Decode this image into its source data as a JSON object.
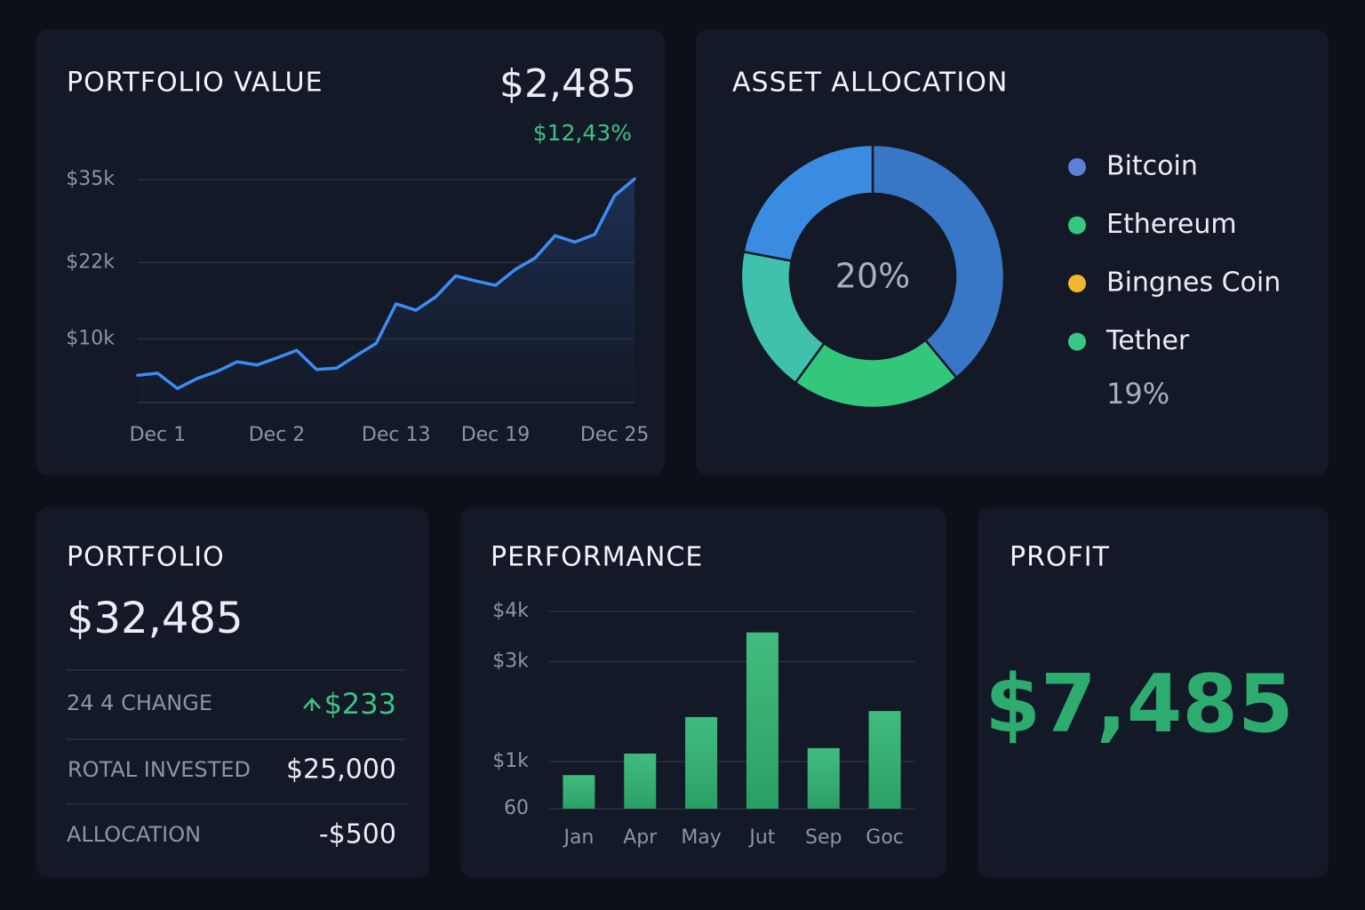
{
  "chart_data": [
    {
      "type": "line",
      "title": "PORTFOLIO VALUE",
      "headline": "$2,485",
      "change": "$12,43%",
      "categories": [
        null,
        "Dec 1",
        null,
        null,
        null,
        null,
        null,
        "Dec 2",
        null,
        null,
        null,
        null,
        null,
        "Dec 13",
        null,
        null,
        null,
        null,
        "Dec 19",
        null,
        null,
        null,
        null,
        null,
        "Dec 25",
        null
      ],
      "series": [
        {
          "color": "#3d8cf2",
          "values": [
            4.3,
            4.6,
            2.2,
            3.8,
            4.9,
            6.4,
            5.9,
            7.0,
            8.2,
            5.2,
            5.4,
            7.4,
            9.3,
            15.5,
            14.5,
            16.6,
            19.9,
            19.1,
            18.4,
            20.9,
            22.7,
            26.2,
            25.2,
            26.4,
            32.5,
            35.1
          ]
        }
      ],
      "ylim": [
        0,
        36
      ],
      "yticks": [
        {
          "value": 10,
          "label": "$10k"
        },
        {
          "value": 22,
          "label": "$22k"
        },
        {
          "value": 35,
          "label": "$35k"
        }
      ],
      "grid": true
    },
    {
      "type": "donut",
      "title": "ASSET ALLOCATION",
      "center_label": "20%",
      "categories": [
        "Bitcoin",
        "Ethereum",
        "Bingnes Coin",
        "Tether"
      ],
      "values": [
        39,
        21,
        18,
        22
      ],
      "colors": [
        "#3877c6",
        "#33c77c",
        "#3fc1ae",
        "#3a8ce3"
      ],
      "legend_colors": [
        "#5a80d8",
        "#35c77d",
        "#f4b530",
        "#38c886"
      ],
      "annotation": "19%"
    },
    {
      "type": "bar",
      "title": "PERFORMANCE",
      "categories": [
        "Jan",
        "Apr",
        "May",
        "Jut",
        "Sep",
        "Goc"
      ],
      "values": [
        730,
        1160,
        1890,
        3580,
        1270,
        2010
      ],
      "color": "#2fb472",
      "ylim": [
        60,
        4000
      ],
      "yticks": [
        60,
        {
          "value": 1000,
          "label": "$1k"
        },
        {
          "value": 3000,
          "label": "$3k"
        },
        {
          "value": 4000,
          "label": "$4k"
        }
      ],
      "grid": true
    }
  ],
  "portfolio": {
    "title": "PORTFOLIO",
    "value": "$32,485",
    "rows": [
      {
        "label": "24 4 CHANGE",
        "value": "$233"
      },
      {
        "label": "ROTAL INVESTED",
        "value": "$25,000"
      },
      {
        "label": "ALLOCATION",
        "value": "-$500"
      }
    ]
  },
  "profit": {
    "title": "PROFIT",
    "value": "$7,485"
  }
}
